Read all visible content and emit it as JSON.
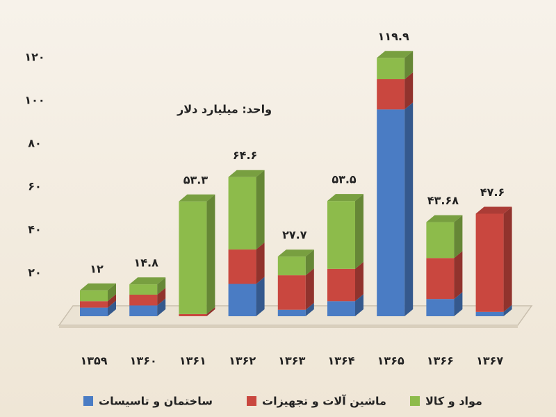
{
  "chart_data": {
    "type": "bar3d-stacked",
    "unit": "واحد: میلیارد دلار",
    "categories": [
      "۱۳۵۹",
      "۱۳۶۰",
      "۱۳۶۱",
      "۱۳۶۲",
      "۱۳۶۳",
      "۱۳۶۴",
      "۱۳۶۵",
      "۱۳۶۶",
      "۱۳۶۷"
    ],
    "series": [
      {
        "name": "ساختمان و تاسیسات",
        "color": "#4a7cc4",
        "values": [
          4,
          5,
          0,
          15,
          3,
          7,
          96,
          8,
          2
        ]
      },
      {
        "name": "ماشین آلات و تجهیزات",
        "color": "#c9473f",
        "values": [
          3,
          5,
          1,
          16,
          16,
          15,
          14,
          19,
          45.6
        ]
      },
      {
        "name": "مواد و کالا",
        "color": "#8dbb4b",
        "values": [
          5,
          4.8,
          52.3,
          33.6,
          8.7,
          31.5,
          9.9,
          16.68,
          0
        ]
      }
    ],
    "totals": [
      12,
      14.8,
      53.3,
      64.6,
      27.7,
      53.5,
      119.9,
      43.68,
      47.6
    ],
    "total_labels": [
      "۱۲",
      "۱۴.۸",
      "۵۳.۳",
      "۶۴.۶",
      "۲۷.۷",
      "۵۳.۵",
      "۱۱۹.۹",
      "۴۳.۶۸",
      "۴۷.۶"
    ],
    "ylim": [
      0,
      120
    ],
    "yticks": [
      {
        "value": 20,
        "label": "۲۰"
      },
      {
        "value": 40,
        "label": "۴۰"
      },
      {
        "value": 60,
        "label": "۶۰"
      },
      {
        "value": 80,
        "label": "۸۰"
      },
      {
        "value": 100,
        "label": "۱۰۰"
      },
      {
        "value": 120,
        "label": "۱۲۰"
      }
    ]
  }
}
